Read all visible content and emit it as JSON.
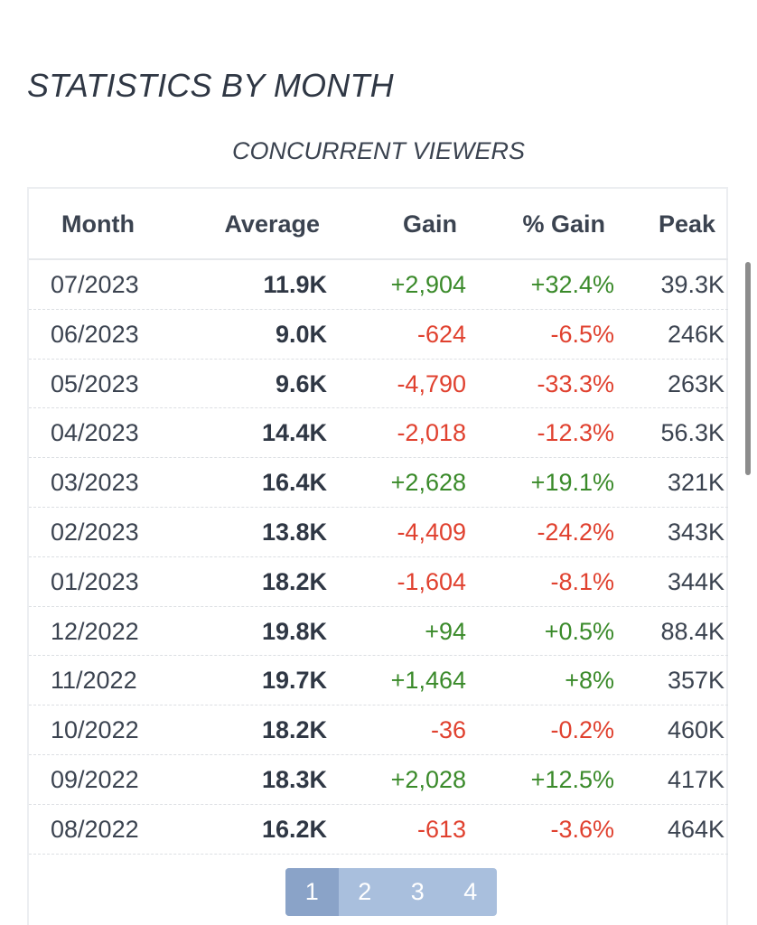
{
  "section_title": "STATISTICS BY MONTH",
  "table_title": "CONCURRENT VIEWERS",
  "columns": {
    "month": "Month",
    "average": "Average",
    "gain": "Gain",
    "pct_gain": "% Gain",
    "peak": "Peak"
  },
  "rows": [
    {
      "month": "07/2023",
      "average": "11.9K",
      "gain": "+2,904",
      "pct_gain": "+32.4%",
      "peak": "39.3K",
      "trend": "positive"
    },
    {
      "month": "06/2023",
      "average": "9.0K",
      "gain": "-624",
      "pct_gain": "-6.5%",
      "peak": "246K",
      "trend": "negative"
    },
    {
      "month": "05/2023",
      "average": "9.6K",
      "gain": "-4,790",
      "pct_gain": "-33.3%",
      "peak": "263K",
      "trend": "negative"
    },
    {
      "month": "04/2023",
      "average": "14.4K",
      "gain": "-2,018",
      "pct_gain": "-12.3%",
      "peak": "56.3K",
      "trend": "negative"
    },
    {
      "month": "03/2023",
      "average": "16.4K",
      "gain": "+2,628",
      "pct_gain": "+19.1%",
      "peak": "321K",
      "trend": "positive"
    },
    {
      "month": "02/2023",
      "average": "13.8K",
      "gain": "-4,409",
      "pct_gain": "-24.2%",
      "peak": "343K",
      "trend": "negative"
    },
    {
      "month": "01/2023",
      "average": "18.2K",
      "gain": "-1,604",
      "pct_gain": "-8.1%",
      "peak": "344K",
      "trend": "negative"
    },
    {
      "month": "12/2022",
      "average": "19.8K",
      "gain": "+94",
      "pct_gain": "+0.5%",
      "peak": "88.4K",
      "trend": "positive"
    },
    {
      "month": "11/2022",
      "average": "19.7K",
      "gain": "+1,464",
      "pct_gain": "+8%",
      "peak": "357K",
      "trend": "positive"
    },
    {
      "month": "10/2022",
      "average": "18.2K",
      "gain": "-36",
      "pct_gain": "-0.2%",
      "peak": "460K",
      "trend": "negative"
    },
    {
      "month": "09/2022",
      "average": "18.3K",
      "gain": "+2,028",
      "pct_gain": "+12.5%",
      "peak": "417K",
      "trend": "positive"
    },
    {
      "month": "08/2022",
      "average": "16.2K",
      "gain": "-613",
      "pct_gain": "-3.6%",
      "peak": "464K",
      "trend": "negative"
    }
  ],
  "pagination": {
    "pages": [
      "1",
      "2",
      "3",
      "4"
    ],
    "current": "1"
  },
  "colors": {
    "positive": "#3a8a2a",
    "negative": "#e0412f",
    "pagination_bg": "#a9bfdd",
    "pagination_active": "#8aa3c8"
  }
}
